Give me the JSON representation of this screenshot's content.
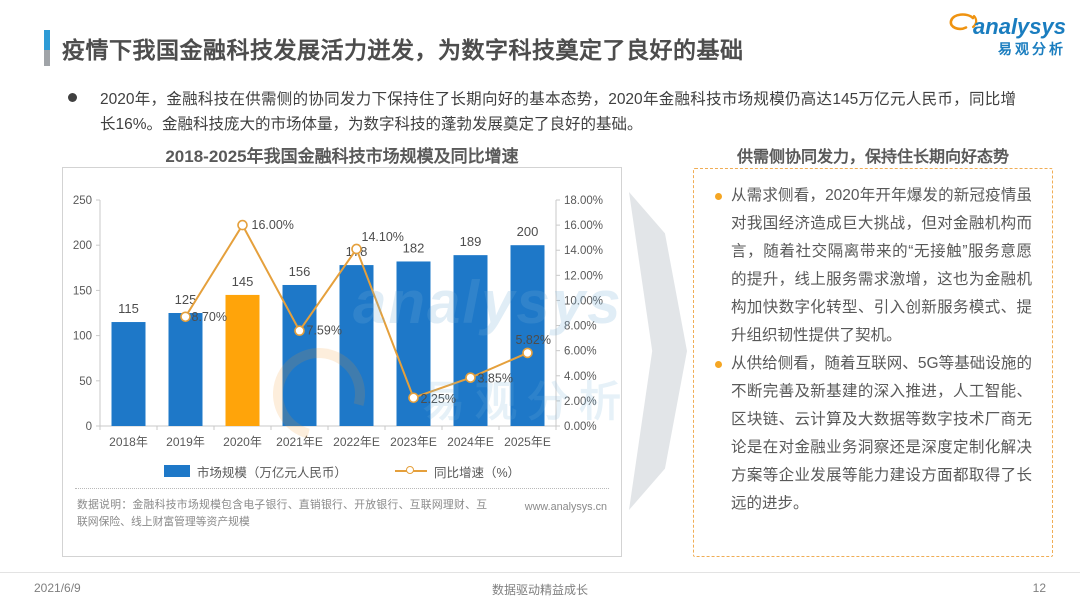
{
  "slide": {
    "title": "疫情下我国金融科技发展活力迸发，为数字科技奠定了良好的基础",
    "footer": {
      "date": "2021/6/9",
      "slogan": "数据驱动精益成长",
      "page": "12"
    }
  },
  "logo": {
    "brand": "analysys",
    "brand_cn": "易观分析"
  },
  "intro": {
    "text": "2020年，金融科技在供需侧的协同发力下保持住了长期向好的基本态势，2020年金融科技市场规模仍高达145万亿元人民币，同比增长16%。金融科技庞大的市场体量，为数字科技的蓬勃发展奠定了良好的基础。"
  },
  "chart_data": {
    "type": "bar",
    "combo": "bar+line",
    "title": "2018-2025年我国金融科技市场规模及同比增速",
    "categories": [
      "2018年",
      "2019年",
      "2020年",
      "2021年E",
      "2022年E",
      "2023年E",
      "2024年E",
      "2025年E"
    ],
    "series": [
      {
        "name": "市场规模（万亿元人民币）",
        "type": "bar",
        "values": [
          115,
          125,
          145,
          156,
          178,
          182,
          189,
          200
        ],
        "color": "#1e78c8",
        "highlight_index": 2,
        "highlight_color": "#ffa40a"
      },
      {
        "name": "同比增速（%）",
        "type": "line",
        "values": [
          null,
          8.7,
          16.0,
          7.59,
          14.1,
          2.25,
          3.85,
          5.82
        ],
        "point_labels": [
          "",
          "8.70%",
          "16.00%",
          "7.59%",
          "14.10%",
          "2.25%",
          "3.85%",
          "5.82%"
        ],
        "color": "#e5a03c"
      }
    ],
    "left_axis": {
      "min": 0,
      "max": 250,
      "ticks": [
        "0",
        "50",
        "100",
        "150",
        "200",
        "250"
      ]
    },
    "right_axis": {
      "min": 0,
      "max": 18,
      "ticks": [
        "0.00%",
        "2.00%",
        "4.00%",
        "6.00%",
        "8.00%",
        "10.00%",
        "12.00%",
        "14.00%",
        "16.00%",
        "18.00%"
      ]
    },
    "legend_position": "bottom",
    "grid": false
  },
  "chart_note": {
    "label": "数据说明：金融科技市场规模包含电子银行、直销银行、开放银行、互联网理财、互联网保险、线上财富管理等资产规模",
    "website": "www.analysys.cn"
  },
  "right_panel": {
    "header": "供需侧协同发力，保持住长期向好态势",
    "bullets": [
      "从需求侧看，2020年开年爆发的新冠疫情虽对我国经济造成巨大挑战，但对金融机构而言，随着社交隔离带来的“无接触”服务意愿的提升，线上服务需求激增，这也为金融机构加快数字化转型、引入创新服务模式、提升组织韧性提供了契机。",
      "从供给侧看，随着互联网、5G等基础设施的不断完善及新基建的深入推进，人工智能、区块链、云计算及大数据等数字技术厂商无论是在对金融业务洞察还是深度定制化解决方案等企业发展等能力建设方面都取得了长远的进步。"
    ]
  },
  "watermark": {
    "brand": "analysys",
    "brand_cn": "易观分析"
  },
  "colors": {
    "bar_blue": "#1e78c8",
    "bar_orange": "#ffa40a",
    "line_orange": "#e5a03c",
    "accent_blue": "#2e9bd6",
    "panel_border_orange": "#f0ad55"
  }
}
